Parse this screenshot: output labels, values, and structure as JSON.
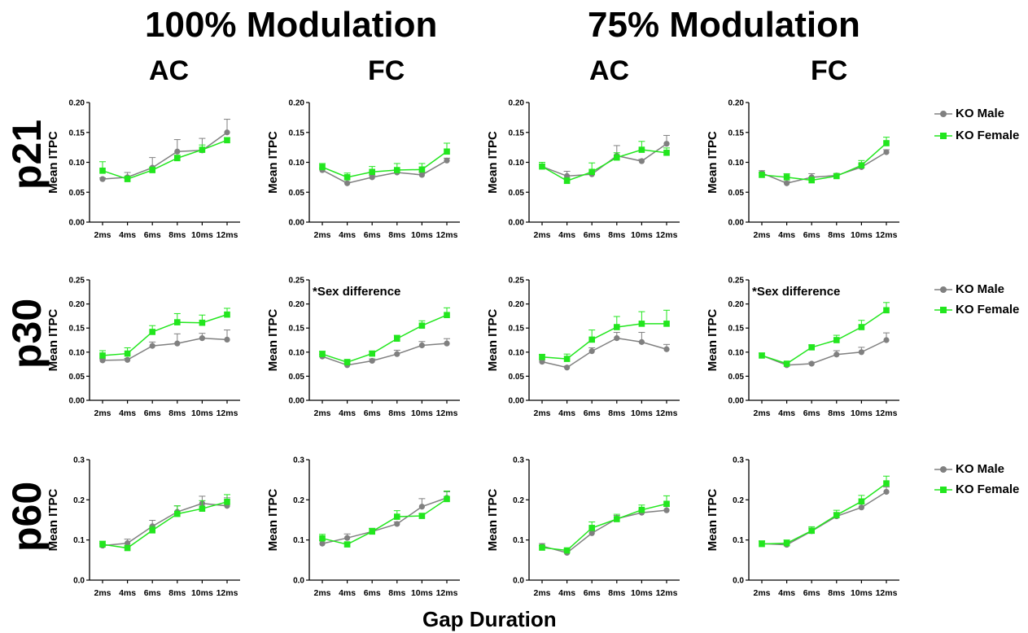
{
  "figure": {
    "conditions": [
      "100% Modulation",
      "75% Modulation"
    ],
    "columns": [
      "AC",
      "FC",
      "AC",
      "FC"
    ],
    "rows": [
      "p21",
      "p30",
      "p60"
    ],
    "x_axis_title": "Gap Duration",
    "legend": [
      {
        "label": "KO Male",
        "color": "#808080",
        "marker": "circle"
      },
      {
        "label": "KO Female",
        "color": "#22e61e",
        "marker": "square"
      }
    ]
  },
  "chart_data": [
    {
      "type": "line",
      "row": "p21",
      "condition": "100% Modulation",
      "column": "AC",
      "ylabel": "Mean ITPC",
      "xlabel": "",
      "categories": [
        "2ms",
        "4ms",
        "6ms",
        "8ms",
        "10ms",
        "12ms"
      ],
      "ylim": [
        0,
        0.2
      ],
      "yticks": [
        "0.00",
        "0.05",
        "0.10",
        "0.15",
        "0.20"
      ],
      "annotation": "",
      "series": [
        {
          "name": "KO Male",
          "values": [
            0.072,
            0.075,
            0.091,
            0.118,
            0.12,
            0.15
          ],
          "err": [
            0.002,
            0.008,
            0.017,
            0.02,
            0.02,
            0.022
          ]
        },
        {
          "name": "KO Female",
          "values": [
            0.086,
            0.072,
            0.087,
            0.107,
            0.121,
            0.137
          ],
          "err": [
            0.015,
            0.005,
            0.005,
            0.005,
            0.008,
            0.004
          ]
        }
      ]
    },
    {
      "type": "line",
      "row": "p21",
      "condition": "100% Modulation",
      "column": "FC",
      "ylabel": "Mean ITPC",
      "xlabel": "",
      "categories": [
        "2ms",
        "4ms",
        "6ms",
        "8ms",
        "10ms",
        "12ms"
      ],
      "ylim": [
        0,
        0.2
      ],
      "yticks": [
        "0.00",
        "0.05",
        "0.10",
        "0.15",
        "0.20"
      ],
      "annotation": "",
      "series": [
        {
          "name": "KO Male",
          "values": [
            0.087,
            0.065,
            0.075,
            0.083,
            0.079,
            0.103
          ],
          "err": [
            0.003,
            0.002,
            0.003,
            0.005,
            0.004,
            0.004
          ]
        },
        {
          "name": "KO Female",
          "values": [
            0.092,
            0.075,
            0.084,
            0.087,
            0.088,
            0.118
          ],
          "err": [
            0.006,
            0.007,
            0.009,
            0.011,
            0.01,
            0.014
          ]
        }
      ]
    },
    {
      "type": "line",
      "row": "p21",
      "condition": "75% Modulation",
      "column": "AC",
      "ylabel": "Mean ITPC",
      "xlabel": "",
      "categories": [
        "2ms",
        "4ms",
        "6ms",
        "8ms",
        "10ms",
        "12ms"
      ],
      "ylim": [
        0,
        0.2
      ],
      "yticks": [
        "0.00",
        "0.05",
        "0.10",
        "0.15",
        "0.20"
      ],
      "annotation": "",
      "series": [
        {
          "name": "KO Male",
          "values": [
            0.093,
            0.077,
            0.08,
            0.111,
            0.102,
            0.131
          ],
          "err": [
            0.004,
            0.008,
            0.004,
            0.017,
            0.003,
            0.014
          ]
        },
        {
          "name": "KO Female",
          "values": [
            0.093,
            0.069,
            0.084,
            0.108,
            0.121,
            0.116
          ],
          "err": [
            0.007,
            0.005,
            0.015,
            0.008,
            0.014,
            0.008
          ]
        }
      ]
    },
    {
      "type": "line",
      "row": "p21",
      "condition": "75% Modulation",
      "column": "FC",
      "ylabel": "Mean ITPC",
      "xlabel": "",
      "categories": [
        "2ms",
        "4ms",
        "6ms",
        "8ms",
        "10ms",
        "12ms"
      ],
      "ylim": [
        0,
        0.2
      ],
      "yticks": [
        "0.00",
        "0.05",
        "0.10",
        "0.15",
        "0.20"
      ],
      "annotation": "",
      "series": [
        {
          "name": "KO Male",
          "values": [
            0.082,
            0.065,
            0.075,
            0.078,
            0.092,
            0.117
          ],
          "err": [
            0.004,
            0.003,
            0.006,
            0.003,
            0.005,
            0.004
          ]
        },
        {
          "name": "KO Female",
          "values": [
            0.079,
            0.075,
            0.07,
            0.077,
            0.095,
            0.132
          ],
          "err": [
            0.004,
            0.006,
            0.005,
            0.003,
            0.008,
            0.01
          ]
        }
      ]
    },
    {
      "type": "line",
      "row": "p30",
      "condition": "100% Modulation",
      "column": "AC",
      "ylabel": "Mean ITPC",
      "xlabel": "",
      "categories": [
        "2ms",
        "4ms",
        "6ms",
        "8ms",
        "10ms",
        "12ms"
      ],
      "ylim": [
        0,
        0.25
      ],
      "yticks": [
        "0.00",
        "0.05",
        "0.10",
        "0.15",
        "0.20",
        "0.25"
      ],
      "annotation": "",
      "series": [
        {
          "name": "KO Male",
          "values": [
            0.083,
            0.084,
            0.113,
            0.118,
            0.129,
            0.126
          ],
          "err": [
            0.003,
            0.003,
            0.008,
            0.02,
            0.01,
            0.02
          ]
        },
        {
          "name": "KO Female",
          "values": [
            0.093,
            0.097,
            0.142,
            0.162,
            0.161,
            0.178
          ],
          "err": [
            0.01,
            0.012,
            0.013,
            0.018,
            0.016,
            0.013
          ]
        }
      ]
    },
    {
      "type": "line",
      "row": "p30",
      "condition": "100% Modulation",
      "column": "FC",
      "ylabel": "Mean ITPC",
      "xlabel": "",
      "categories": [
        "2ms",
        "4ms",
        "6ms",
        "8ms",
        "10ms",
        "12ms"
      ],
      "ylim": [
        0,
        0.25
      ],
      "yticks": [
        "0.00",
        "0.05",
        "0.10",
        "0.15",
        "0.20",
        "0.25"
      ],
      "annotation": "*Sex difference",
      "series": [
        {
          "name": "KO Male",
          "values": [
            0.091,
            0.073,
            0.082,
            0.096,
            0.114,
            0.118
          ],
          "err": [
            0.004,
            0.003,
            0.004,
            0.008,
            0.008,
            0.01
          ]
        },
        {
          "name": "KO Female",
          "values": [
            0.096,
            0.079,
            0.097,
            0.128,
            0.155,
            0.177
          ],
          "err": [
            0.006,
            0.006,
            0.005,
            0.007,
            0.01,
            0.015
          ]
        }
      ]
    },
    {
      "type": "line",
      "row": "p30",
      "condition": "75% Modulation",
      "column": "AC",
      "ylabel": "Mean ITPC",
      "xlabel": "",
      "categories": [
        "2ms",
        "4ms",
        "6ms",
        "8ms",
        "10ms",
        "12ms"
      ],
      "ylim": [
        0,
        0.25
      ],
      "yticks": [
        "0.00",
        "0.05",
        "0.10",
        "0.15",
        "0.20",
        "0.25"
      ],
      "annotation": "",
      "series": [
        {
          "name": "KO Male",
          "values": [
            0.08,
            0.068,
            0.102,
            0.129,
            0.121,
            0.106
          ],
          "err": [
            0.004,
            0.003,
            0.007,
            0.012,
            0.02,
            0.01
          ]
        },
        {
          "name": "KO Female",
          "values": [
            0.09,
            0.086,
            0.126,
            0.152,
            0.159,
            0.159
          ],
          "err": [
            0.005,
            0.01,
            0.02,
            0.022,
            0.025,
            0.028
          ]
        }
      ]
    },
    {
      "type": "line",
      "row": "p30",
      "condition": "75% Modulation",
      "column": "FC",
      "ylabel": "Mean ITPC",
      "xlabel": "",
      "categories": [
        "2ms",
        "4ms",
        "6ms",
        "8ms",
        "10ms",
        "12ms"
      ],
      "ylim": [
        0,
        0.25
      ],
      "yticks": [
        "0.00",
        "0.05",
        "0.10",
        "0.15",
        "0.20",
        "0.25"
      ],
      "annotation": "*Sex difference",
      "series": [
        {
          "name": "KO Male",
          "values": [
            0.093,
            0.073,
            0.076,
            0.095,
            0.1,
            0.125
          ],
          "err": [
            0.005,
            0.004,
            0.003,
            0.008,
            0.01,
            0.015
          ]
        },
        {
          "name": "KO Female",
          "values": [
            0.093,
            0.076,
            0.11,
            0.125,
            0.152,
            0.187
          ],
          "err": [
            0.005,
            0.004,
            0.005,
            0.01,
            0.014,
            0.016
          ]
        }
      ]
    },
    {
      "type": "line",
      "row": "p60",
      "condition": "100% Modulation",
      "column": "AC",
      "ylabel": "Mean ITPC",
      "xlabel": "",
      "categories": [
        "2ms",
        "4ms",
        "6ms",
        "8ms",
        "10ms",
        "12ms"
      ],
      "ylim": [
        0,
        0.3
      ],
      "yticks": [
        "0.0",
        "0.1",
        "0.2",
        "0.3"
      ],
      "annotation": "",
      "series": [
        {
          "name": "KO Male",
          "values": [
            0.086,
            0.092,
            0.134,
            0.17,
            0.191,
            0.185
          ],
          "err": [
            0.005,
            0.01,
            0.015,
            0.015,
            0.018,
            0.02
          ]
        },
        {
          "name": "KO Female",
          "values": [
            0.089,
            0.08,
            0.124,
            0.165,
            0.178,
            0.195
          ],
          "err": [
            0.008,
            0.005,
            0.01,
            0.02,
            0.02,
            0.018
          ]
        }
      ]
    },
    {
      "type": "line",
      "row": "p60",
      "condition": "100% Modulation",
      "column": "FC",
      "ylabel": "Mean ITPC",
      "xlabel": "",
      "categories": [
        "2ms",
        "4ms",
        "6ms",
        "8ms",
        "10ms",
        "12ms"
      ],
      "ylim": [
        0,
        0.3
      ],
      "yticks": [
        "0.0",
        "0.1",
        "0.2",
        "0.3"
      ],
      "annotation": "",
      "series": [
        {
          "name": "KO Male",
          "values": [
            0.091,
            0.105,
            0.121,
            0.14,
            0.183,
            0.205
          ],
          "err": [
            0.008,
            0.01,
            0.008,
            0.005,
            0.02,
            0.015
          ]
        },
        {
          "name": "KO Female",
          "values": [
            0.104,
            0.089,
            0.121,
            0.158,
            0.16,
            0.202
          ],
          "err": [
            0.01,
            0.005,
            0.008,
            0.015,
            0.005,
            0.02
          ]
        }
      ]
    },
    {
      "type": "line",
      "row": "p60",
      "condition": "75% Modulation",
      "column": "AC",
      "ylabel": "Mean ITPC",
      "xlabel": "",
      "categories": [
        "2ms",
        "4ms",
        "6ms",
        "8ms",
        "10ms",
        "12ms"
      ],
      "ylim": [
        0,
        0.3
      ],
      "yticks": [
        "0.0",
        "0.1",
        "0.2",
        "0.3"
      ],
      "annotation": "",
      "series": [
        {
          "name": "KO Male",
          "values": [
            0.085,
            0.068,
            0.117,
            0.153,
            0.168,
            0.174
          ],
          "err": [
            0.006,
            0.004,
            0.006,
            0.008,
            0.008,
            0.01
          ]
        },
        {
          "name": "KO Female",
          "values": [
            0.081,
            0.074,
            0.13,
            0.152,
            0.175,
            0.19
          ],
          "err": [
            0.005,
            0.004,
            0.015,
            0.012,
            0.012,
            0.02
          ]
        }
      ]
    },
    {
      "type": "line",
      "row": "p60",
      "condition": "75% Modulation",
      "column": "FC",
      "ylabel": "Mean ITPC",
      "xlabel": "",
      "categories": [
        "2ms",
        "4ms",
        "6ms",
        "8ms",
        "10ms",
        "12ms"
      ],
      "ylim": [
        0,
        0.3
      ],
      "yticks": [
        "0.0",
        "0.1",
        "0.2",
        "0.3"
      ],
      "annotation": "",
      "series": [
        {
          "name": "KO Male",
          "values": [
            0.091,
            0.088,
            0.122,
            0.159,
            0.181,
            0.22
          ],
          "err": [
            0.006,
            0.005,
            0.008,
            0.008,
            0.01,
            0.012
          ]
        },
        {
          "name": "KO Female",
          "values": [
            0.09,
            0.092,
            0.123,
            0.162,
            0.196,
            0.241
          ],
          "err": [
            0.008,
            0.008,
            0.01,
            0.012,
            0.015,
            0.018
          ]
        }
      ]
    }
  ]
}
